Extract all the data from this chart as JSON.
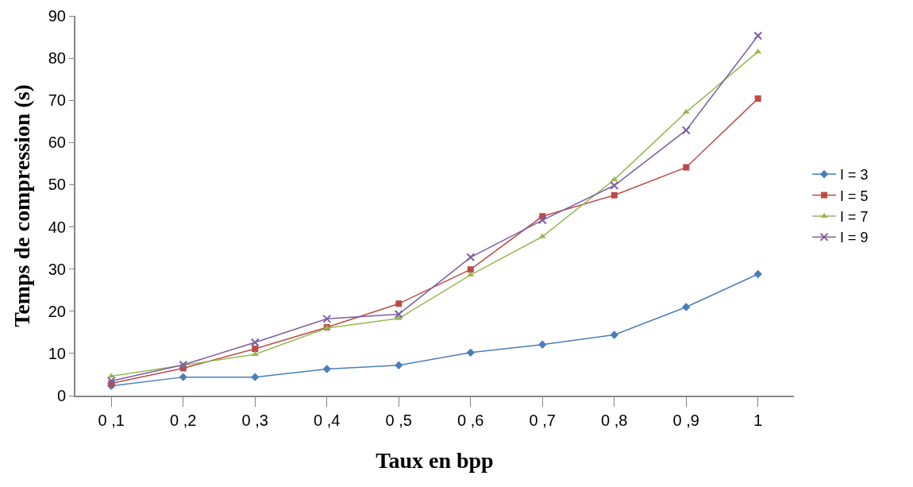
{
  "chart_data": {
    "type": "line",
    "xlabel": "Taux en bpp",
    "ylabel": "Temps de compression (s)",
    "categories": [
      "0 ,1",
      "0 ,2",
      "0 ,3",
      "0 ,4",
      "0 ,5",
      "0 ,6",
      "0 ,7",
      "0 ,8",
      "0 ,9",
      "1"
    ],
    "series": [
      {
        "name": "I = 3",
        "color": "#4a7ebb",
        "marker": "diamond",
        "values": [
          2.3,
          4.4,
          4.4,
          6.3,
          7.2,
          10.2,
          12.1,
          14.4,
          21.0,
          28.8
        ]
      },
      {
        "name": "I = 5",
        "color": "#be4b48",
        "marker": "square",
        "values": [
          2.9,
          6.5,
          11.1,
          16.2,
          21.8,
          29.9,
          42.5,
          47.5,
          54.1,
          70.4
        ]
      },
      {
        "name": "I = 7",
        "color": "#98b954",
        "marker": "triangle",
        "values": [
          4.6,
          7.2,
          9.8,
          16.0,
          18.3,
          28.6,
          37.7,
          51.2,
          67.2,
          81.5
        ]
      },
      {
        "name": "I = 9",
        "color": "#7d5fa0",
        "marker": "cross",
        "values": [
          3.5,
          7.3,
          12.6,
          18.2,
          19.3,
          32.8,
          41.6,
          49.8,
          62.9,
          85.3
        ]
      }
    ],
    "ylim": [
      0,
      90
    ],
    "yticks": [
      0,
      10,
      20,
      30,
      40,
      50,
      60,
      70,
      80,
      90
    ],
    "grid": false,
    "legend": "right",
    "line_style": "solid"
  }
}
